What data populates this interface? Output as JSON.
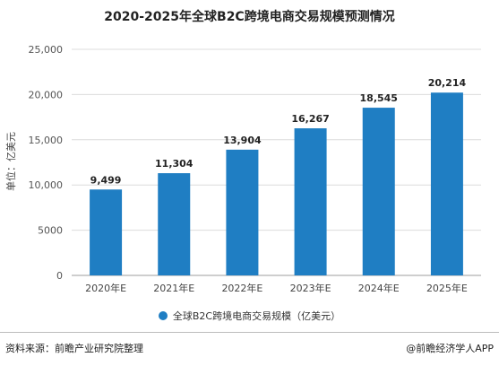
{
  "chart_data": {
    "type": "bar",
    "title": "2020-2025年全球B2C跨境电商交易规模预测情况",
    "ylabel": "单位：亿美元",
    "xlabel": "",
    "categories": [
      "2020年E",
      "2021年E",
      "2022年E",
      "2023年E",
      "2024年E",
      "2025年E"
    ],
    "series": [
      {
        "name": "全球B2C跨境电商交易规模（亿美元）",
        "values": [
          9499,
          11304,
          13904,
          16267,
          18545,
          20214
        ]
      }
    ],
    "data_labels": [
      "9,499",
      "11,304",
      "13,904",
      "16,267",
      "18,545",
      "20,214"
    ],
    "ylim": [
      0,
      25000
    ],
    "yticks": [
      0,
      5000,
      10000,
      15000,
      20000,
      25000
    ],
    "ytick_labels": [
      "0",
      "5000",
      "10,000",
      "15,000",
      "20,000",
      "25,000"
    ],
    "grid": true,
    "legend_position": "bottom",
    "bar_color": "#1f7ec3"
  },
  "footer": {
    "source": "资料来源：前瞻产业研究院整理",
    "credit": "@前瞻经济学人APP"
  }
}
